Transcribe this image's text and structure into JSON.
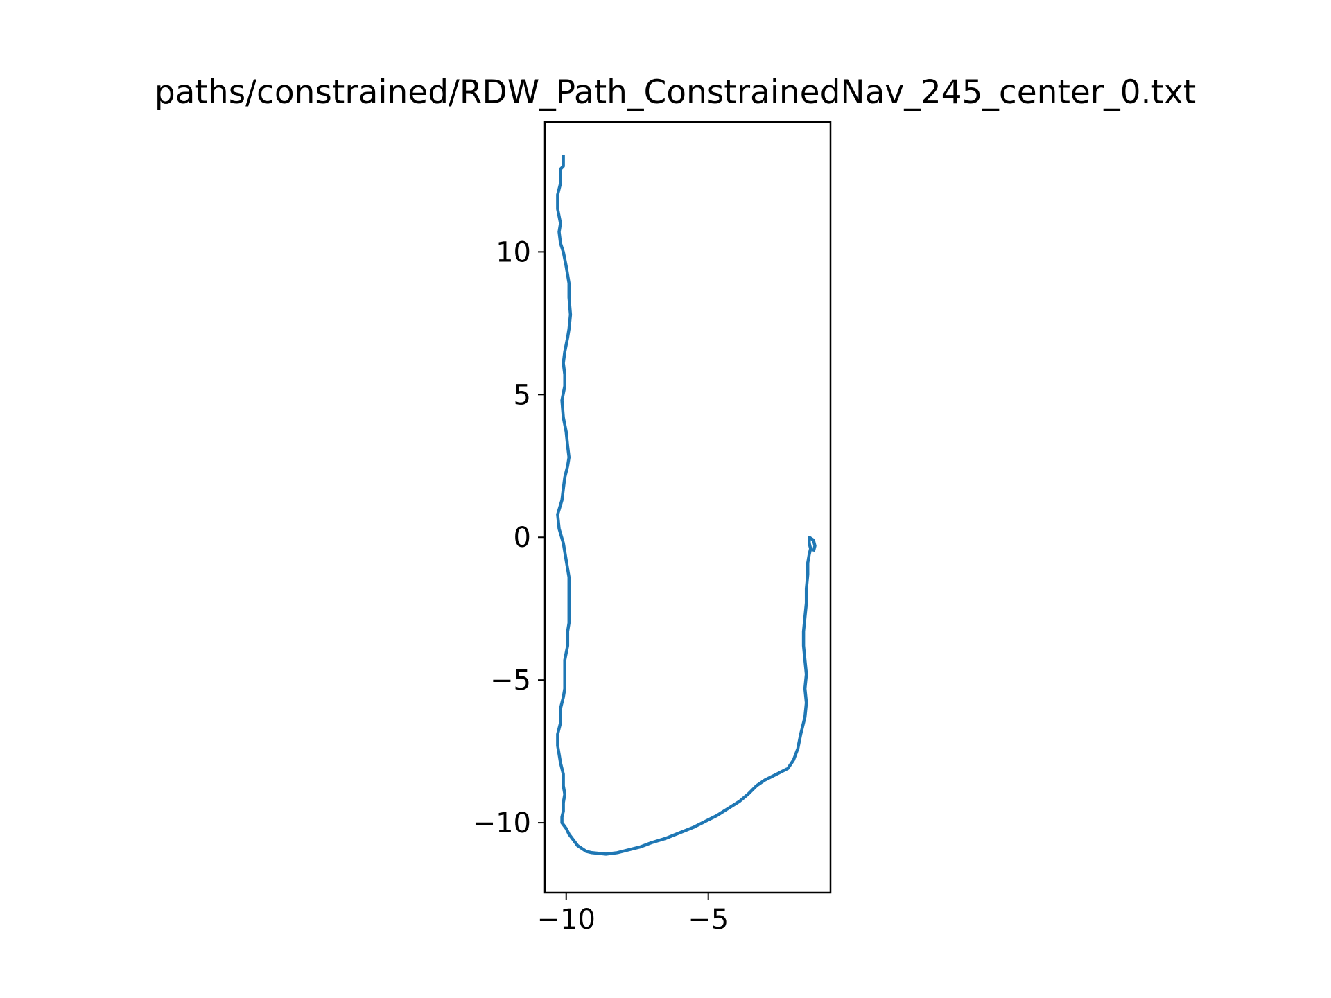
{
  "chart_data": {
    "type": "line",
    "title": "paths/constrained/RDW_Path_ConstrainedNav_245_center_0.txt",
    "xlabel": "",
    "ylabel": "",
    "xlim": [
      -10.75,
      -0.7
    ],
    "ylim": [
      -12.45,
      14.55
    ],
    "xticks": [
      -10,
      -5
    ],
    "xtick_labels": [
      "−10",
      "−5"
    ],
    "yticks": [
      10,
      5,
      0,
      -5,
      -10
    ],
    "ytick_labels": [
      "10",
      "5",
      "0",
      "−5",
      "−10"
    ],
    "grid": false,
    "legend": "none",
    "series": [
      {
        "color": "#1f77b4",
        "x": [
          -10.1,
          -10.1,
          -10.2,
          -10.2,
          -10.3,
          -10.3,
          -10.2,
          -10.25,
          -10.2,
          -10.1,
          -10.0,
          -9.9,
          -9.9,
          -9.85,
          -9.9,
          -9.95,
          -10.05,
          -10.1,
          -10.05,
          -10.05,
          -10.15,
          -10.1,
          -10.0,
          -9.95,
          -9.9,
          -9.95,
          -10.05,
          -10.1,
          -10.15,
          -10.3,
          -10.25,
          -10.1,
          -10.0,
          -9.9,
          -9.9,
          -9.9,
          -9.9,
          -9.9,
          -9.95,
          -9.95,
          -10.05,
          -10.05,
          -10.05,
          -10.1,
          -10.2,
          -10.2,
          -10.3,
          -10.3,
          -10.25,
          -10.2,
          -10.1,
          -10.1,
          -10.05,
          -10.1,
          -10.1,
          -10.15,
          -10.15,
          -10.0,
          -9.9,
          -9.75,
          -9.6,
          -9.3,
          -9.1,
          -8.6,
          -8.2,
          -7.8,
          -7.4,
          -7.0,
          -6.5,
          -6.0,
          -5.5,
          -5.1,
          -4.7,
          -4.3,
          -3.9,
          -3.6,
          -3.3,
          -3.0,
          -2.6,
          -2.2,
          -2.0,
          -1.85,
          -1.75,
          -1.6,
          -1.55,
          -1.6,
          -1.55,
          -1.6,
          -1.65,
          -1.65,
          -1.6,
          -1.55,
          -1.55,
          -1.5,
          -1.5,
          -1.45,
          -1.4,
          -1.45,
          -1.45,
          -1.3,
          -1.25,
          -1.3
        ],
        "y": [
          13.4,
          13.0,
          12.9,
          12.4,
          12.0,
          11.5,
          11.0,
          10.7,
          10.3,
          10.0,
          9.5,
          8.9,
          8.4,
          7.8,
          7.3,
          7.0,
          6.5,
          6.1,
          5.7,
          5.3,
          4.8,
          4.2,
          3.7,
          3.2,
          2.8,
          2.5,
          2.1,
          1.7,
          1.3,
          0.8,
          0.3,
          -0.2,
          -0.8,
          -1.4,
          -1.9,
          -2.3,
          -2.6,
          -3.0,
          -3.3,
          -3.8,
          -4.3,
          -4.9,
          -5.3,
          -5.6,
          -6.0,
          -6.5,
          -6.9,
          -7.3,
          -7.6,
          -7.9,
          -8.3,
          -8.7,
          -9.0,
          -9.3,
          -9.6,
          -9.8,
          -10.0,
          -10.2,
          -10.4,
          -10.6,
          -10.8,
          -11.0,
          -11.05,
          -11.1,
          -11.05,
          -10.95,
          -10.85,
          -10.7,
          -10.55,
          -10.35,
          -10.15,
          -9.95,
          -9.75,
          -9.5,
          -9.25,
          -9.0,
          -8.7,
          -8.5,
          -8.3,
          -8.1,
          -7.8,
          -7.4,
          -6.9,
          -6.3,
          -5.8,
          -5.3,
          -4.8,
          -4.3,
          -3.8,
          -3.3,
          -2.8,
          -2.3,
          -1.8,
          -1.3,
          -0.9,
          -0.6,
          -0.4,
          -0.2,
          0.0,
          -0.1,
          -0.3,
          -0.5
        ]
      }
    ]
  }
}
